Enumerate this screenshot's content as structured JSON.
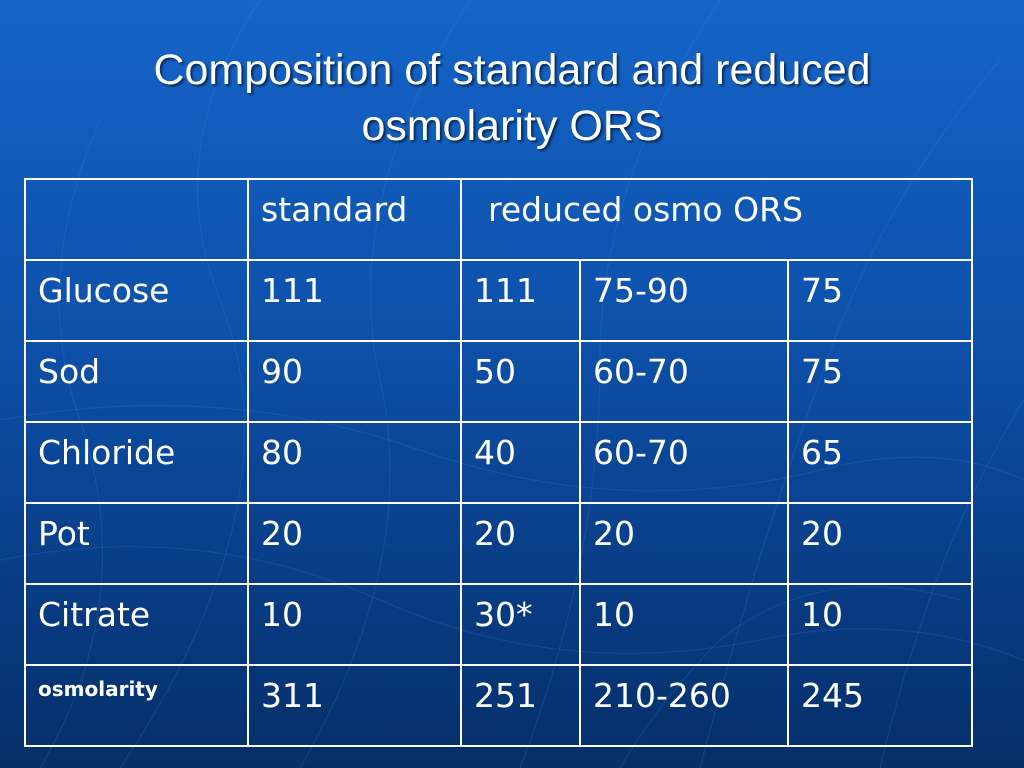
{
  "slide": {
    "title_line1": "Composition of standard and reduced",
    "title_line2": "osmolarity ORS",
    "colors": {
      "background_top": "#1564c9",
      "background_bottom": "#062f68",
      "text": "#ffffff",
      "table_border": "#ffffff"
    }
  },
  "table": {
    "header": {
      "corner": "",
      "standard": "standard",
      "reduced": "reduced osmo ORS"
    },
    "rows": [
      {
        "label": "Glucose",
        "cells": [
          "111",
          "111",
          "75-90",
          "75"
        ]
      },
      {
        "label": "Sod",
        "cells": [
          "90",
          "50",
          "60-70",
          "75"
        ]
      },
      {
        "label": "Chloride",
        "cells": [
          "80",
          "40",
          "60-70",
          "65"
        ]
      },
      {
        "label": "Pot",
        "cells": [
          "20",
          "20",
          "20",
          "20"
        ]
      },
      {
        "label": "Citrate",
        "cells": [
          "10",
          "30*",
          "10",
          "10"
        ]
      },
      {
        "label": "osmolarity",
        "cells": [
          "311",
          "251",
          "210-260",
          "245"
        ]
      }
    ]
  }
}
